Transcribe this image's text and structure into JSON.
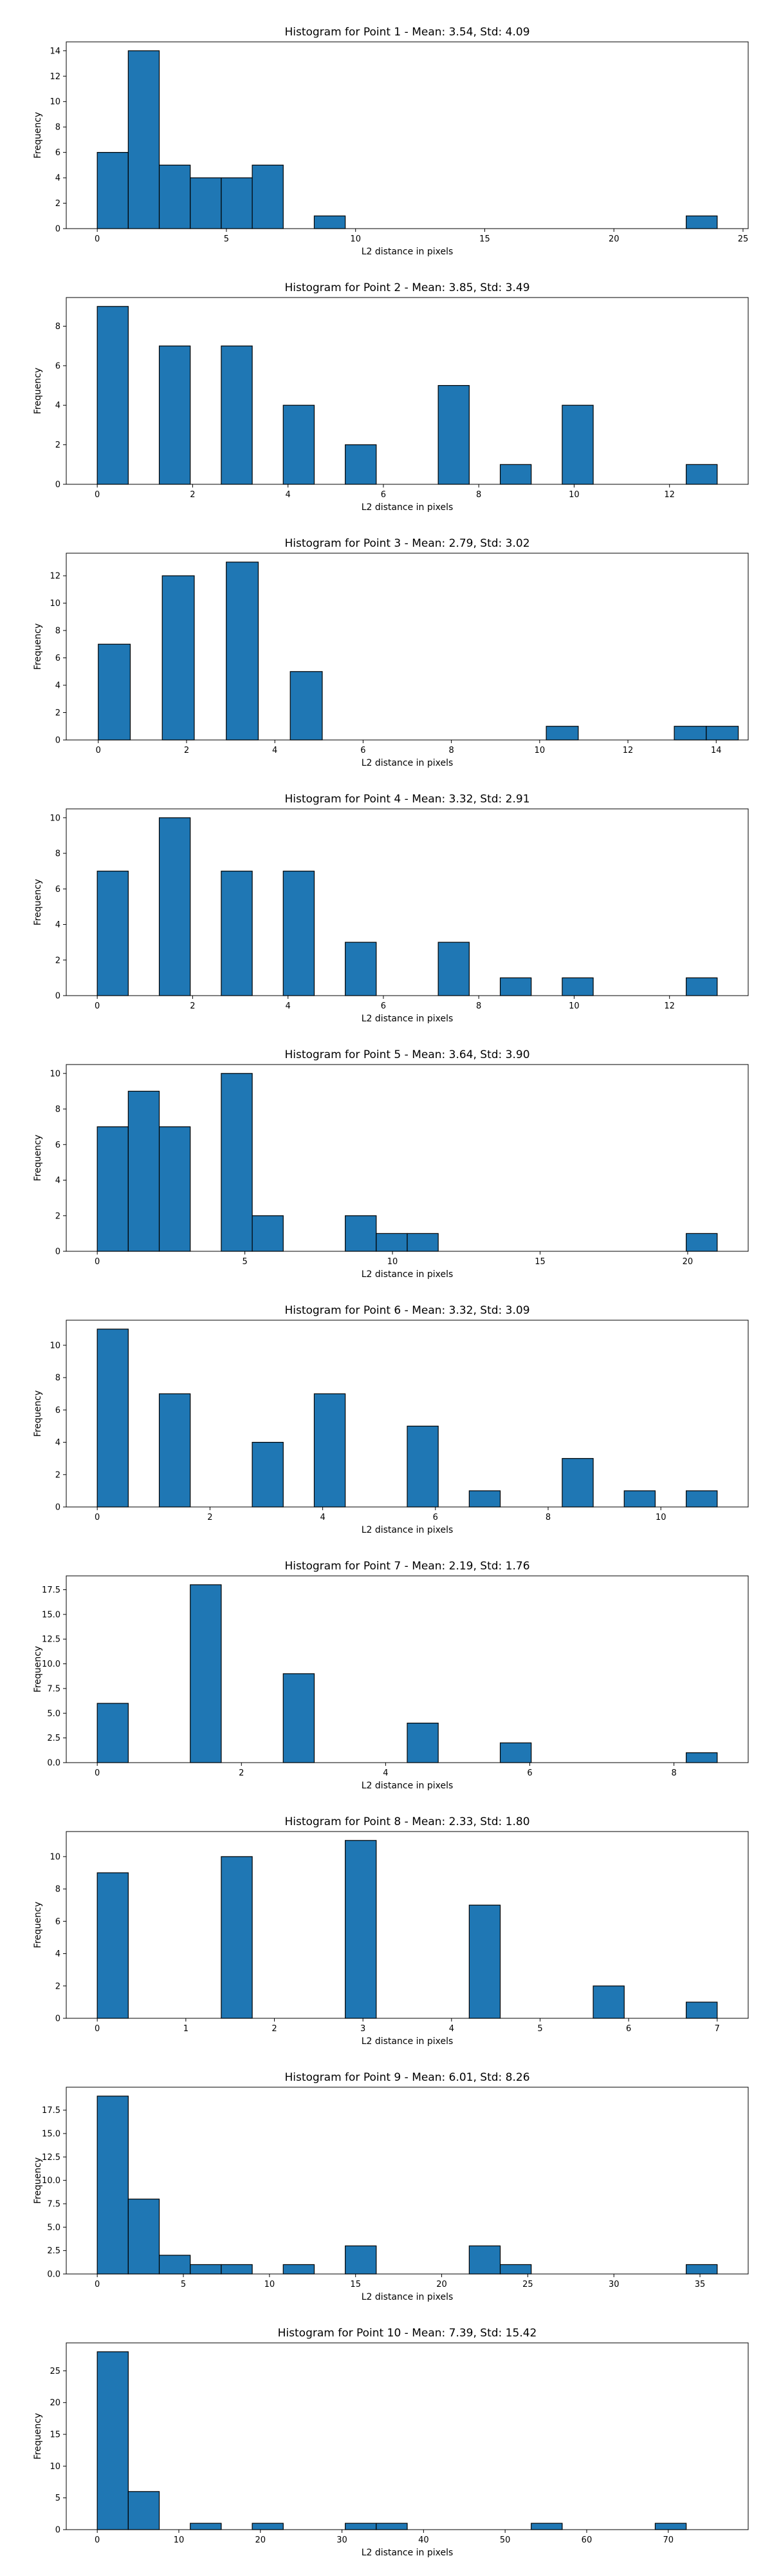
{
  "colors": {
    "bar": "#1f77b4",
    "edge": "#000000"
  },
  "chart_data": [
    {
      "type": "bar",
      "title": "Histogram for Point 1 - Mean: 3.54, Std: 4.09",
      "xlabel": "L2 distance in pixels",
      "ylabel": "Frequency",
      "xlim": [
        -1.2,
        25.2
      ],
      "ylim": [
        0,
        14.7
      ],
      "xticks": [
        0,
        5,
        10,
        15,
        20,
        25
      ],
      "yticks": [
        0,
        2,
        4,
        6,
        8,
        10,
        12,
        14
      ],
      "bin_width": 1.2,
      "bins": [
        {
          "x": 0,
          "count": 6
        },
        {
          "x": 1.2,
          "count": 14
        },
        {
          "x": 2.4,
          "count": 5
        },
        {
          "x": 3.6,
          "count": 4
        },
        {
          "x": 4.8,
          "count": 4
        },
        {
          "x": 6.0,
          "count": 5
        },
        {
          "x": 8.4,
          "count": 1
        },
        {
          "x": 22.8,
          "count": 1
        }
      ]
    },
    {
      "type": "bar",
      "title": "Histogram for Point 2 - Mean: 3.85, Std: 3.49",
      "xlabel": "L2 distance in pixels",
      "ylabel": "Frequency",
      "xlim": [
        -0.65,
        13.65
      ],
      "ylim": [
        0,
        9.45
      ],
      "xticks": [
        0,
        2,
        4,
        6,
        8,
        10,
        12
      ],
      "yticks": [
        0,
        2,
        4,
        6,
        8
      ],
      "bin_width": 0.65,
      "bins": [
        {
          "x": 0,
          "count": 9
        },
        {
          "x": 1.3,
          "count": 7
        },
        {
          "x": 2.6,
          "count": 7
        },
        {
          "x": 3.9,
          "count": 4
        },
        {
          "x": 5.2,
          "count": 2
        },
        {
          "x": 7.15,
          "count": 5
        },
        {
          "x": 8.45,
          "count": 1
        },
        {
          "x": 9.75,
          "count": 4
        },
        {
          "x": 12.35,
          "count": 1
        }
      ]
    },
    {
      "type": "bar",
      "title": "Histogram for Point 3 - Mean: 2.79, Std: 3.02",
      "xlabel": "L2 distance in pixels",
      "ylabel": "Frequency",
      "xlim": [
        -0.725,
        14.725
      ],
      "ylim": [
        0,
        13.65
      ],
      "xticks": [
        0,
        2,
        4,
        6,
        8,
        10,
        12,
        14
      ],
      "yticks": [
        0,
        2,
        4,
        6,
        8,
        10,
        12
      ],
      "bin_width": 0.725,
      "bins": [
        {
          "x": 0,
          "count": 7
        },
        {
          "x": 1.45,
          "count": 12
        },
        {
          "x": 2.9,
          "count": 13
        },
        {
          "x": 4.35,
          "count": 5
        },
        {
          "x": 10.15,
          "count": 1
        },
        {
          "x": 13.05,
          "count": 1
        },
        {
          "x": 13.775,
          "count": 1
        }
      ]
    },
    {
      "type": "bar",
      "title": "Histogram for Point 4 - Mean: 3.32, Std: 2.91",
      "xlabel": "L2 distance in pixels",
      "ylabel": "Frequency",
      "xlim": [
        -0.65,
        13.65
      ],
      "ylim": [
        0,
        10.5
      ],
      "xticks": [
        0,
        2,
        4,
        6,
        8,
        10,
        12
      ],
      "yticks": [
        0,
        2,
        4,
        6,
        8,
        10
      ],
      "bin_width": 0.65,
      "bins": [
        {
          "x": 0,
          "count": 7
        },
        {
          "x": 1.3,
          "count": 10
        },
        {
          "x": 2.6,
          "count": 7
        },
        {
          "x": 3.9,
          "count": 7
        },
        {
          "x": 5.2,
          "count": 3
        },
        {
          "x": 7.15,
          "count": 3
        },
        {
          "x": 8.45,
          "count": 1
        },
        {
          "x": 9.75,
          "count": 1
        },
        {
          "x": 12.35,
          "count": 1
        }
      ]
    },
    {
      "type": "bar",
      "title": "Histogram for Point 5 - Mean: 3.64, Std: 3.90",
      "xlabel": "L2 distance in pixels",
      "ylabel": "Frequency",
      "xlim": [
        -1.05,
        22.05
      ],
      "ylim": [
        0,
        10.5
      ],
      "xticks": [
        0,
        5,
        10,
        15,
        20
      ],
      "yticks": [
        0,
        2,
        4,
        6,
        8,
        10
      ],
      "bin_width": 1.05,
      "bins": [
        {
          "x": 0,
          "count": 7
        },
        {
          "x": 1.05,
          "count": 9
        },
        {
          "x": 2.1,
          "count": 7
        },
        {
          "x": 4.2,
          "count": 10
        },
        {
          "x": 5.25,
          "count": 2
        },
        {
          "x": 8.4,
          "count": 2
        },
        {
          "x": 9.45,
          "count": 1
        },
        {
          "x": 10.5,
          "count": 1
        },
        {
          "x": 19.95,
          "count": 1
        }
      ]
    },
    {
      "type": "bar",
      "title": "Histogram for Point 6 - Mean: 3.32, Std: 3.09",
      "xlabel": "L2 distance in pixels",
      "ylabel": "Frequency",
      "xlim": [
        -0.55,
        11.55
      ],
      "ylim": [
        0,
        11.55
      ],
      "xticks": [
        0,
        2,
        4,
        6,
        8,
        10
      ],
      "yticks": [
        0,
        2,
        4,
        6,
        8,
        10
      ],
      "bin_width": 0.55,
      "bins": [
        {
          "x": 0,
          "count": 11
        },
        {
          "x": 1.1,
          "count": 7
        },
        {
          "x": 2.75,
          "count": 4
        },
        {
          "x": 3.85,
          "count": 7
        },
        {
          "x": 5.5,
          "count": 5
        },
        {
          "x": 6.6,
          "count": 1
        },
        {
          "x": 8.25,
          "count": 3
        },
        {
          "x": 9.35,
          "count": 1
        },
        {
          "x": 10.45,
          "count": 1
        }
      ]
    },
    {
      "type": "bar",
      "title": "Histogram for Point 7 - Mean: 2.19, Std: 1.76",
      "xlabel": "L2 distance in pixels",
      "ylabel": "Frequency",
      "xlim": [
        -0.43,
        9.03
      ],
      "ylim": [
        0,
        18.9
      ],
      "xticks": [
        0,
        2,
        4,
        6,
        8
      ],
      "yticks": [
        0,
        2.5,
        5.0,
        7.5,
        10.0,
        12.5,
        15.0,
        17.5
      ],
      "ytick_labels": [
        "0.0",
        "2.5",
        "5.0",
        "7.5",
        "10.0",
        "12.5",
        "15.0",
        "17.5"
      ],
      "bin_width": 0.43,
      "bins": [
        {
          "x": 0,
          "count": 6
        },
        {
          "x": 1.29,
          "count": 18
        },
        {
          "x": 2.58,
          "count": 9
        },
        {
          "x": 4.3,
          "count": 4
        },
        {
          "x": 5.59,
          "count": 2
        },
        {
          "x": 8.17,
          "count": 1
        }
      ]
    },
    {
      "type": "bar",
      "title": "Histogram for Point 8 - Mean: 2.33, Std: 1.80",
      "xlabel": "L2 distance in pixels",
      "ylabel": "Frequency",
      "xlim": [
        -0.35,
        7.35
      ],
      "ylim": [
        0,
        11.55
      ],
      "xticks": [
        0,
        1,
        2,
        3,
        4,
        5,
        6,
        7
      ],
      "yticks": [
        0,
        2,
        4,
        6,
        8,
        10
      ],
      "bin_width": 0.35,
      "bins": [
        {
          "x": 0,
          "count": 9
        },
        {
          "x": 1.4,
          "count": 10
        },
        {
          "x": 2.8,
          "count": 11
        },
        {
          "x": 4.2,
          "count": 7
        },
        {
          "x": 5.6,
          "count": 2
        },
        {
          "x": 6.65,
          "count": 1
        }
      ]
    },
    {
      "type": "bar",
      "title": "Histogram for Point 9 - Mean: 6.01, Std: 8.26",
      "xlabel": "L2 distance in pixels",
      "ylabel": "Frequency",
      "xlim": [
        -1.8,
        37.8
      ],
      "ylim": [
        0,
        19.95
      ],
      "xticks": [
        0,
        5,
        10,
        15,
        20,
        25,
        30,
        35
      ],
      "yticks": [
        0,
        2.5,
        5.0,
        7.5,
        10.0,
        12.5,
        15.0,
        17.5
      ],
      "ytick_labels": [
        "0.0",
        "2.5",
        "5.0",
        "7.5",
        "10.0",
        "12.5",
        "15.0",
        "17.5"
      ],
      "bin_width": 1.8,
      "bins": [
        {
          "x": 0,
          "count": 19
        },
        {
          "x": 1.8,
          "count": 8
        },
        {
          "x": 3.6,
          "count": 2
        },
        {
          "x": 5.4,
          "count": 1
        },
        {
          "x": 7.2,
          "count": 1
        },
        {
          "x": 10.8,
          "count": 1
        },
        {
          "x": 14.4,
          "count": 3
        },
        {
          "x": 21.6,
          "count": 3
        },
        {
          "x": 23.4,
          "count": 1
        },
        {
          "x": 34.2,
          "count": 1
        }
      ]
    },
    {
      "type": "bar",
      "title": "Histogram for Point 10 - Mean: 7.39, Std: 15.42",
      "xlabel": "L2 distance in pixels",
      "ylabel": "Frequency",
      "xlim": [
        -3.8,
        79.8
      ],
      "ylim": [
        0,
        29.4
      ],
      "xticks": [
        0,
        10,
        20,
        30,
        40,
        50,
        60,
        70
      ],
      "yticks": [
        0,
        5,
        10,
        15,
        20,
        25
      ],
      "bin_width": 3.8,
      "bins": [
        {
          "x": 0,
          "count": 28
        },
        {
          "x": 3.8,
          "count": 6
        },
        {
          "x": 11.4,
          "count": 1
        },
        {
          "x": 19.0,
          "count": 1
        },
        {
          "x": 30.4,
          "count": 1
        },
        {
          "x": 34.2,
          "count": 1
        },
        {
          "x": 53.2,
          "count": 1
        },
        {
          "x": 68.4,
          "count": 1
        }
      ]
    }
  ]
}
